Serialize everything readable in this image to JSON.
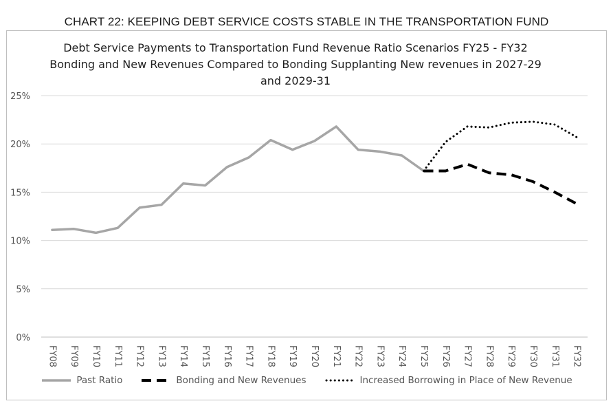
{
  "header": "CHART 22:  KEEPING DEBT SERVICE COSTS STABLE IN THE TRANSPORTATION FUND",
  "chart_data": {
    "type": "line",
    "title": "Debt Service Payments to Transportation Fund Revenue Ratio Scenarios FY25 - FY32  Bonding and New Revenues Compared to Bonding Supplanting New revenues in  2027-29 and 2029-31",
    "xlabel": "",
    "ylabel": "",
    "categories": [
      "FY08",
      "FY09",
      "FY10",
      "FY11",
      "FY12",
      "FY13",
      "FY14",
      "FY15",
      "FY16",
      "FY17",
      "FY18",
      "FY19",
      "FY20",
      "FY21",
      "FY22",
      "FY23",
      "FY24",
      "FY25",
      "FY26",
      "FY27",
      "FY28",
      "FY29",
      "FY30",
      "FY31",
      "FY32"
    ],
    "ylim": [
      0,
      25
    ],
    "yticks": [
      "0%",
      "5%",
      "10%",
      "15%",
      "20%",
      "25%"
    ],
    "ytick_values": [
      0,
      5,
      10,
      15,
      20,
      25
    ],
    "grid": true,
    "legend_position": "bottom",
    "series": [
      {
        "name": "Past Ratio",
        "style": "solid",
        "color": "#a6a6a6",
        "values": [
          11.1,
          11.2,
          10.8,
          11.3,
          13.4,
          13.7,
          15.9,
          15.7,
          17.6,
          18.6,
          20.4,
          19.4,
          20.3,
          21.8,
          19.4,
          19.2,
          18.8,
          17.2,
          null,
          null,
          null,
          null,
          null,
          null,
          null
        ]
      },
      {
        "name": "Bonding and New Revenues",
        "style": "dashed",
        "color": "#000000",
        "values": [
          null,
          null,
          null,
          null,
          null,
          null,
          null,
          null,
          null,
          null,
          null,
          null,
          null,
          null,
          null,
          null,
          null,
          17.2,
          17.2,
          17.9,
          17.0,
          16.8,
          16.1,
          15.0,
          13.8
        ]
      },
      {
        "name": "Increased Borrowing in Place of New Revenue",
        "style": "dotted",
        "color": "#000000",
        "values": [
          null,
          null,
          null,
          null,
          null,
          null,
          null,
          null,
          null,
          null,
          null,
          null,
          null,
          null,
          null,
          null,
          null,
          17.2,
          20.2,
          21.8,
          21.7,
          22.2,
          22.3,
          22.0,
          20.7
        ]
      }
    ]
  }
}
